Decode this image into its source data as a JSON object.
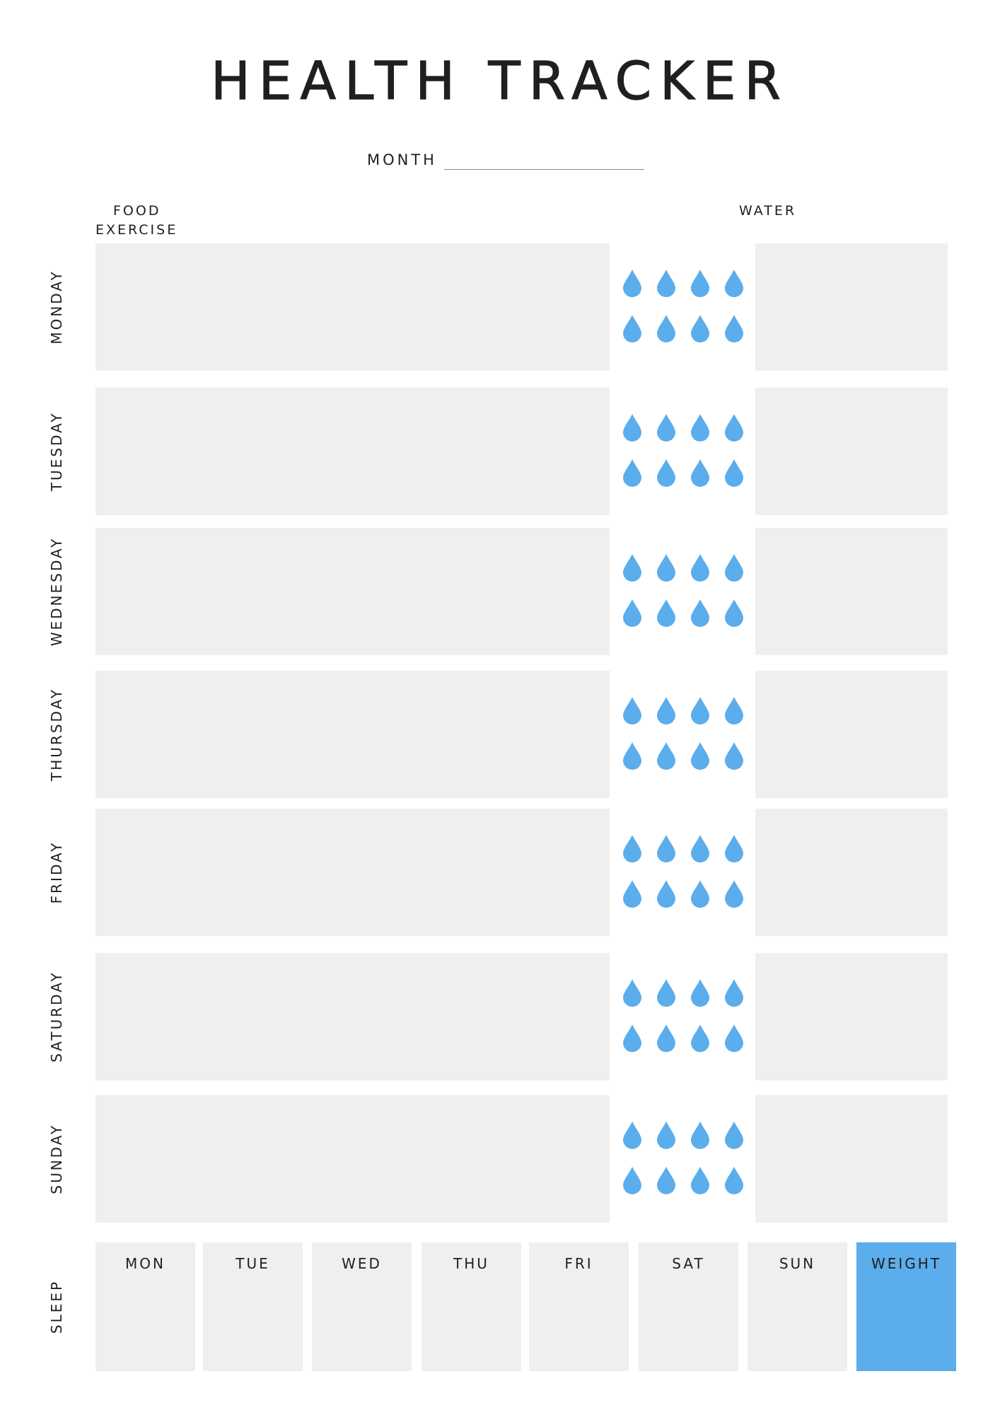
{
  "title": "HEALTH TRACKER",
  "month_label": "MONTH",
  "headers": {
    "food": "FOOD",
    "exercise": "EXERCISE",
    "water": "WATER"
  },
  "days": [
    {
      "label": "MONDAY",
      "water_glasses": 8
    },
    {
      "label": "TUESDAY",
      "water_glasses": 8
    },
    {
      "label": "WEDNESDAY",
      "water_glasses": 8
    },
    {
      "label": "THURSDAY",
      "water_glasses": 8
    },
    {
      "label": "FRIDAY",
      "water_glasses": 8
    },
    {
      "label": "SATURDAY",
      "water_glasses": 8
    },
    {
      "label": "SUNDAY",
      "water_glasses": 8
    }
  ],
  "sleep": {
    "label": "SLEEP",
    "days": [
      "MON",
      "TUE",
      "WED",
      "THU",
      "FRI",
      "SAT",
      "SUN"
    ],
    "weight_label": "WEIGHT"
  },
  "colors": {
    "drop": "#5badec",
    "panel": "#efefef",
    "weight": "#5badec"
  },
  "icons": {
    "water": "water-drop-icon"
  }
}
